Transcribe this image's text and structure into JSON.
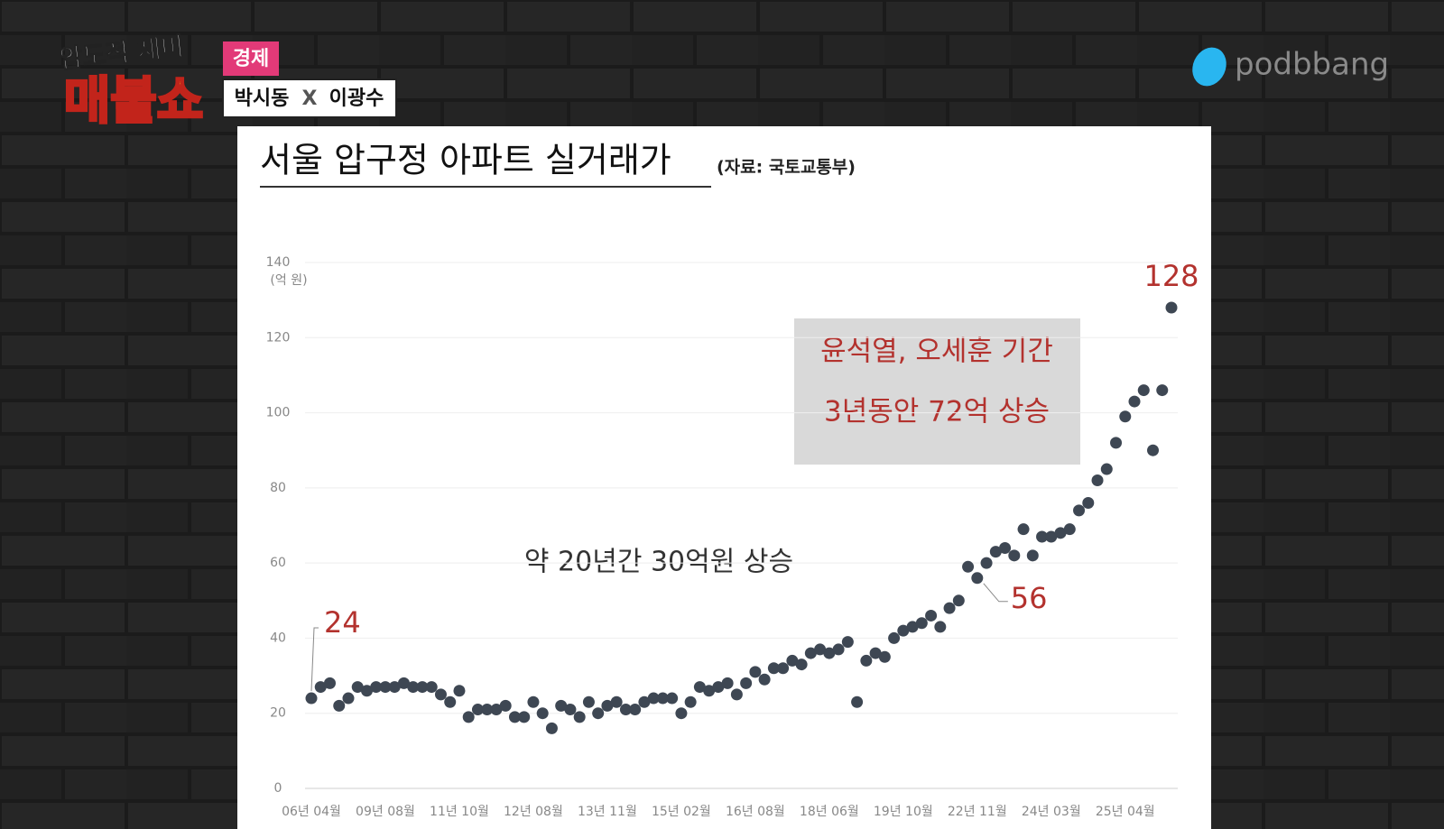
{
  "overlay": {
    "show_tagline": "압도적 재미",
    "show_name": "매불쇼",
    "section": "경제",
    "host_1": "박시동",
    "host_sep": "X",
    "host_2": "이광수",
    "brand": "podbbang"
  },
  "chart_data": {
    "type": "scatter",
    "title": "서울 압구정 아파트 실거래가",
    "source": "(자료: 국토교통부)",
    "ylabel": "(억 원)",
    "annotations": [
      "약 20년간 30억원 상승",
      "윤석열, 오세훈 기간",
      "3년동안 72억 상승"
    ],
    "ylim": [
      0,
      140
    ],
    "yticks": [
      0,
      20,
      40,
      60,
      80,
      100,
      120,
      140
    ],
    "grid": true,
    "color": "#3e4753",
    "label_color": "#b3322e",
    "categories": [
      "06년 04월",
      null,
      null,
      null,
      null,
      null,
      null,
      null,
      "09년 08월",
      null,
      null,
      null,
      null,
      null,
      null,
      null,
      "11년 10월",
      null,
      null,
      null,
      null,
      null,
      null,
      null,
      "12년 08월",
      null,
      null,
      null,
      null,
      null,
      null,
      null,
      "13년 11월",
      null,
      null,
      null,
      null,
      null,
      null,
      null,
      "15년 02월",
      null,
      null,
      null,
      null,
      null,
      null,
      null,
      "16년 08월",
      null,
      null,
      null,
      null,
      null,
      null,
      null,
      "18년 06월",
      null,
      null,
      null,
      null,
      null,
      null,
      null,
      "19년 10월",
      null,
      null,
      null,
      null,
      null,
      null,
      null,
      "22년 11월",
      null,
      null,
      null,
      null,
      null,
      null,
      null,
      "24년 03월",
      null,
      null,
      null,
      null,
      null,
      null,
      null,
      "25년 04월",
      null,
      null,
      null,
      null,
      null
    ],
    "values": [
      24,
      27,
      28,
      22,
      24,
      27,
      26,
      27,
      27,
      27,
      28,
      27,
      27,
      27,
      25,
      23,
      26,
      19,
      21,
      21,
      21,
      22,
      19,
      19,
      23,
      20,
      16,
      22,
      21,
      19,
      23,
      20,
      22,
      23,
      21,
      21,
      23,
      24,
      24,
      24,
      20,
      23,
      27,
      26,
      27,
      28,
      25,
      28,
      31,
      29,
      32,
      32,
      34,
      33,
      36,
      37,
      36,
      37,
      39,
      23,
      34,
      36,
      35,
      40,
      42,
      43,
      44,
      46,
      43,
      48,
      50,
      59,
      56,
      60,
      63,
      64,
      62,
      69,
      62,
      67,
      67,
      68,
      69,
      74,
      76,
      82,
      85,
      92,
      99,
      103,
      106,
      90,
      106,
      128
    ],
    "value_labels": [
      "24",
      null,
      null,
      null,
      null,
      null,
      null,
      null,
      null,
      null,
      null,
      null,
      null,
      null,
      null,
      null,
      null,
      null,
      null,
      null,
      null,
      null,
      null,
      null,
      null,
      null,
      null,
      null,
      null,
      null,
      null,
      null,
      null,
      null,
      null,
      null,
      null,
      null,
      null,
      null,
      null,
      null,
      null,
      null,
      null,
      null,
      null,
      null,
      null,
      null,
      null,
      null,
      null,
      null,
      null,
      null,
      null,
      null,
      null,
      null,
      null,
      null,
      null,
      null,
      null,
      null,
      null,
      null,
      null,
      null,
      null,
      null,
      "56",
      null,
      null,
      null,
      null,
      null,
      null,
      null,
      null,
      null,
      null,
      null,
      null,
      null,
      null,
      null,
      null,
      null,
      null,
      null,
      null,
      "128"
    ]
  }
}
